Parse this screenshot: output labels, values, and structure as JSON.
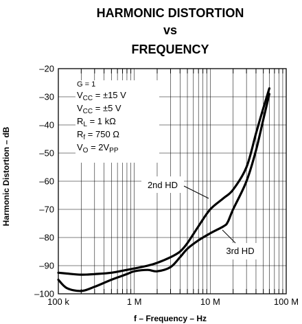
{
  "chart_data": {
    "type": "line",
    "title_lines": [
      "HARMONIC DISTORTION",
      "vs",
      "FREQUENCY"
    ],
    "xlabel": "f – Frequency – Hz",
    "ylabel": "Harmonic Distortion – dB",
    "x_scale": "log",
    "xlim": [
      100000,
      100000000
    ],
    "ylim": [
      -100,
      -20
    ],
    "x_ticks": [
      100000,
      1000000,
      10000000,
      100000000
    ],
    "x_tick_labels": [
      "100 k",
      "1 M",
      "10 M",
      "100 M"
    ],
    "y_ticks": [
      -100,
      -90,
      -80,
      -70,
      -60,
      -50,
      -40,
      -30,
      -20
    ],
    "y_tick_labels": [
      "–100",
      "–90",
      "–80",
      "–70",
      "–60",
      "–50",
      "–40",
      "–30",
      "–20"
    ],
    "grid": true,
    "conditions": [
      {
        "main": "G = 1",
        "sub": "",
        "rest": ""
      },
      {
        "main": "V",
        "sub": "CC",
        "rest": " = ±15 V"
      },
      {
        "main": "V",
        "sub": "CC",
        "rest": " = ±5 V"
      },
      {
        "main": "R",
        "sub": "L",
        "rest": " = 1 kΩ"
      },
      {
        "main": "R",
        "sub": "f",
        "rest": " = 750 Ω"
      },
      {
        "main": "V",
        "sub": "O",
        "rest": " = 2V",
        "sub2": "PP"
      }
    ],
    "series": [
      {
        "name": "2nd HD",
        "x": [
          100000,
          130000,
          200000,
          300000,
          500000,
          800000,
          1000000,
          1500000,
          2000000,
          3000000,
          4000000,
          5000000,
          7000000,
          10000000,
          15000000,
          20000000,
          30000000,
          40000000,
          50000000,
          60000000
        ],
        "y": [
          -92.5,
          -92.8,
          -93.2,
          -93,
          -92.5,
          -91.5,
          -91,
          -90,
          -89,
          -87,
          -85,
          -82,
          -76,
          -70,
          -66,
          -63,
          -55,
          -43,
          -34,
          -27
        ]
      },
      {
        "name": "3rd HD",
        "x": [
          100000,
          130000,
          200000,
          300000,
          500000,
          800000,
          1000000,
          1500000,
          2000000,
          3000000,
          4000000,
          5000000,
          7000000,
          10000000,
          15000000,
          17000000,
          20000000,
          30000000,
          40000000,
          50000000,
          60000000
        ],
        "y": [
          -95,
          -98,
          -99,
          -97.5,
          -95,
          -93,
          -92,
          -91.5,
          -92,
          -90.5,
          -87,
          -84,
          -81,
          -78.5,
          -76,
          -74.5,
          -70,
          -60,
          -49,
          -38,
          -29
        ]
      }
    ]
  }
}
